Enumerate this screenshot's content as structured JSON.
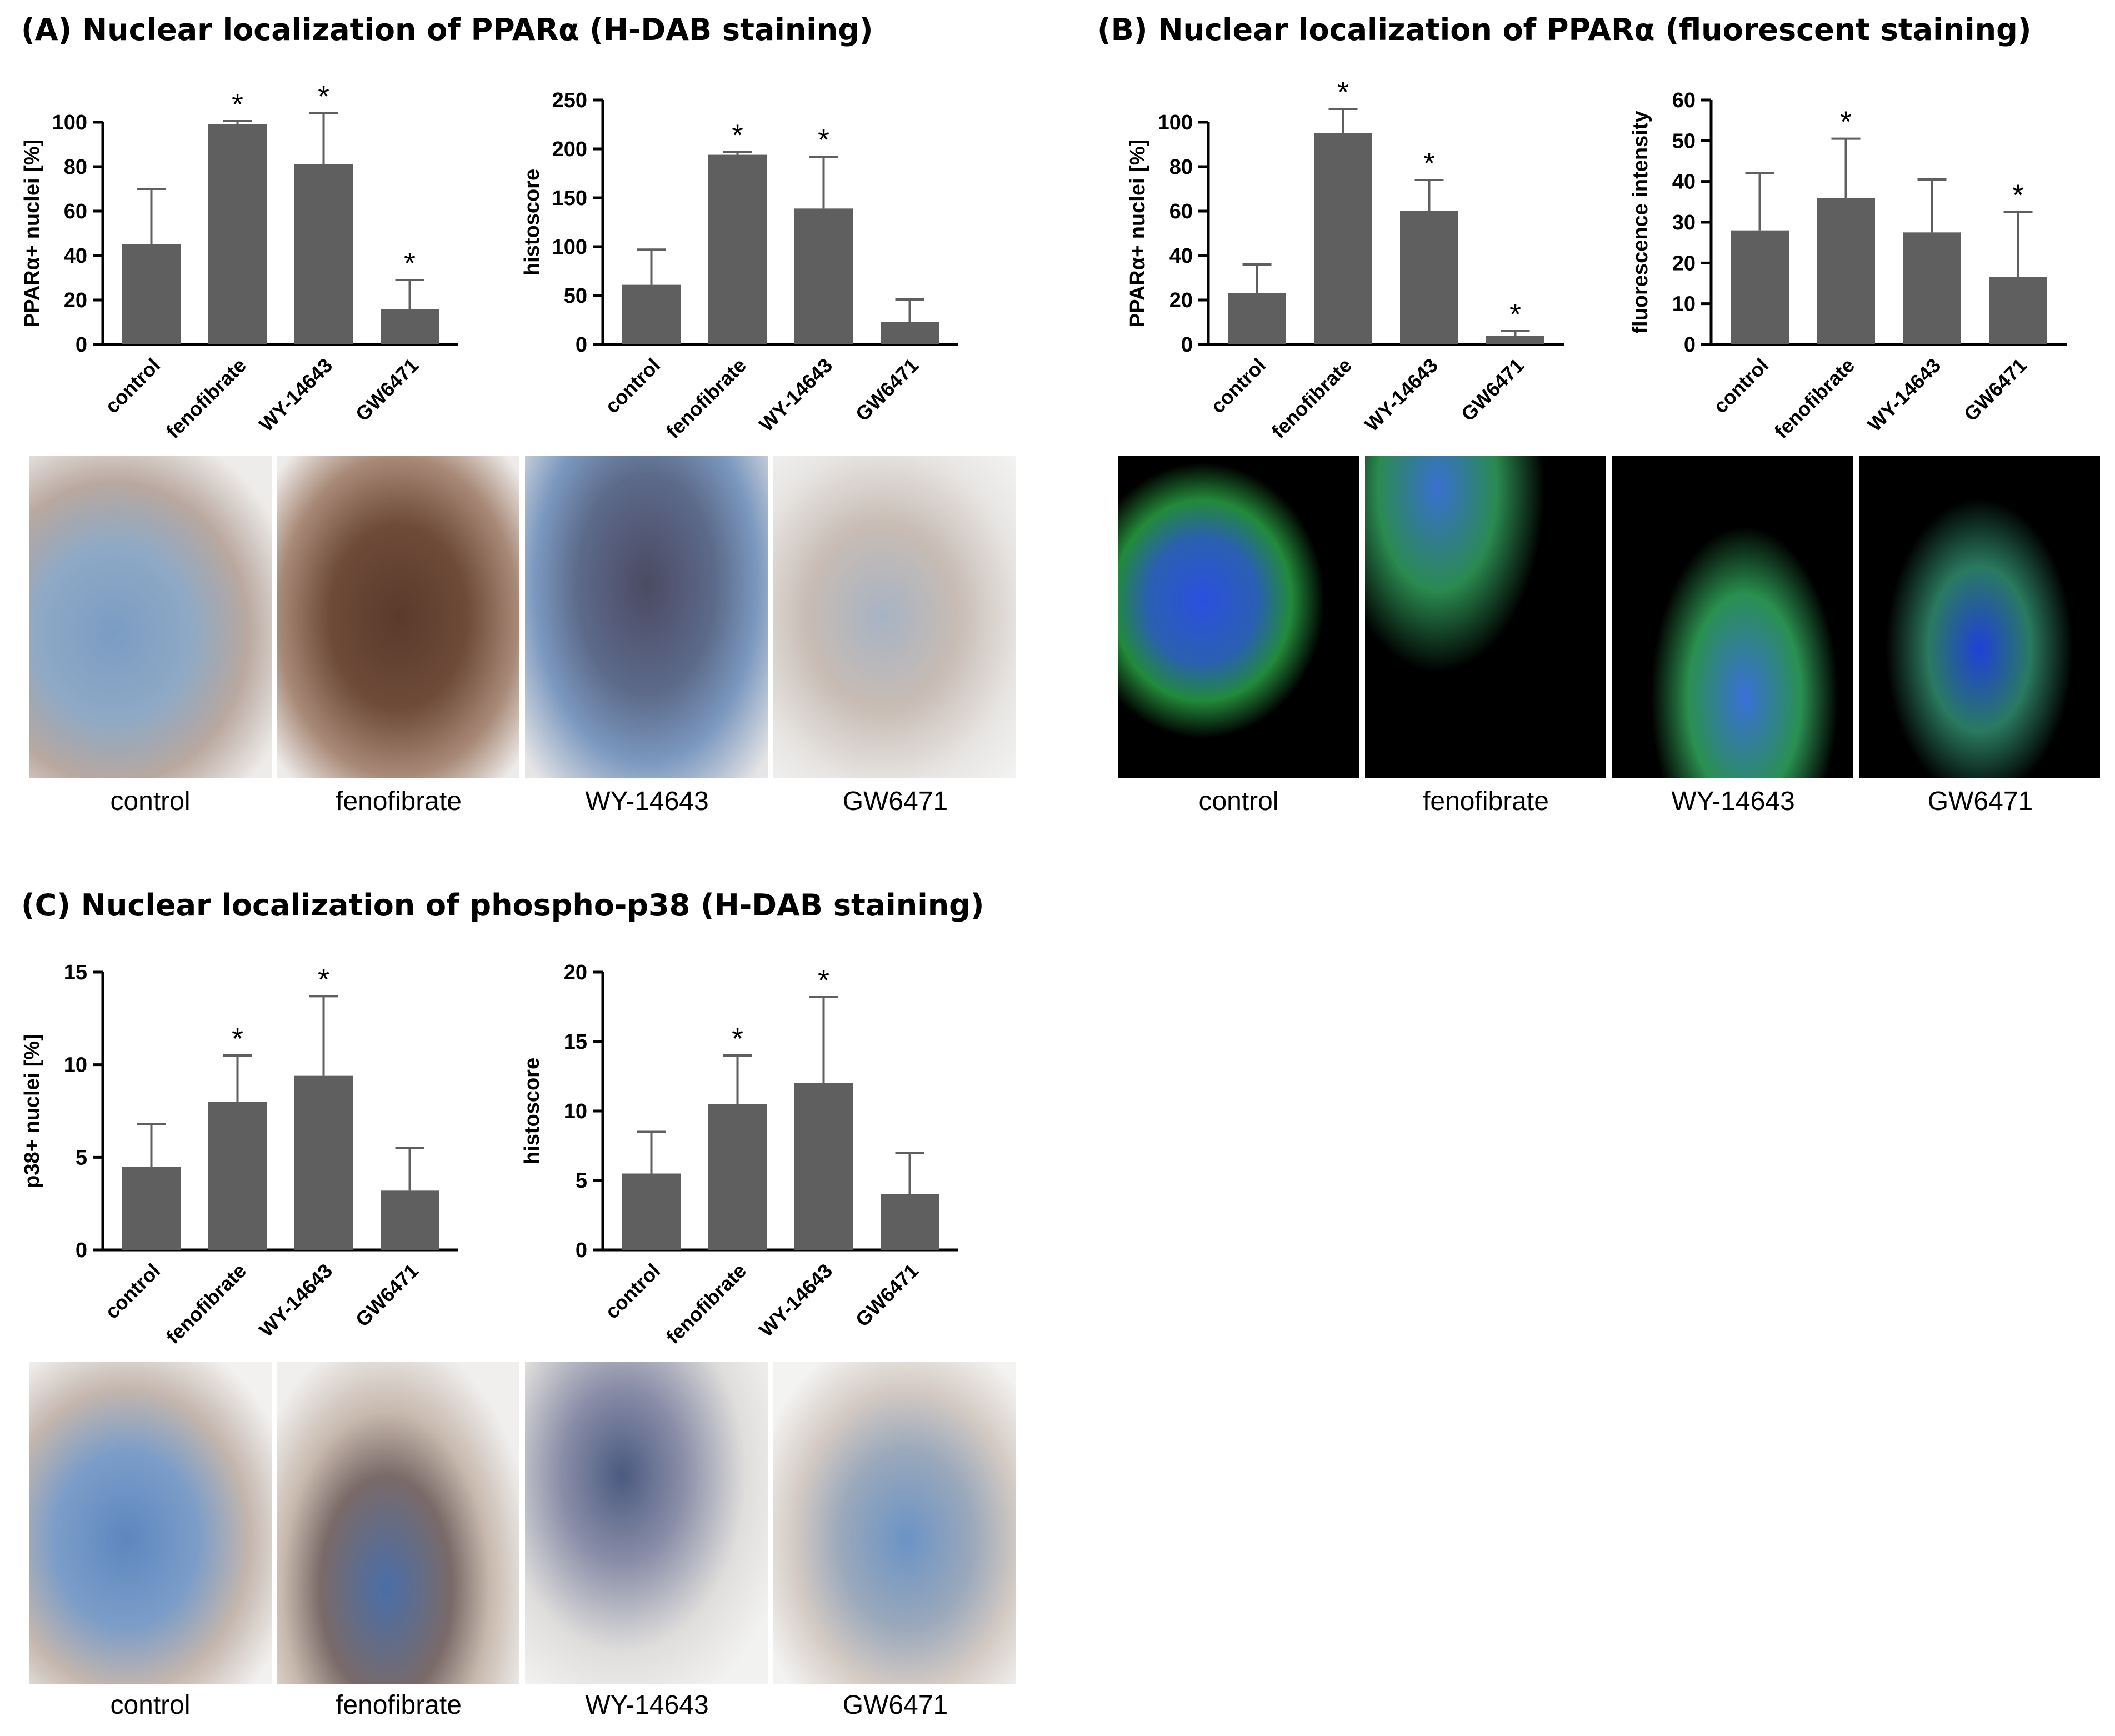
{
  "panels": {
    "A": {
      "title": "(A) Nuclear localization of PPARα (H-DAB staining)",
      "image_labels": [
        "control",
        "fenofibrate",
        "WY-14643",
        "GW6471"
      ]
    },
    "B": {
      "title": "(B) Nuclear localization of PPARα (fluorescent staining)",
      "image_labels": [
        "control",
        "fenofibrate",
        "WY-14643",
        "GW6471"
      ]
    },
    "C": {
      "title": "(C) Nuclear localization of phospho-p38 (H-DAB staining)",
      "image_labels": [
        "control",
        "fenofibrate",
        "WY-14643",
        "GW6471"
      ]
    }
  },
  "colors": {
    "bar": "#5f5f5f",
    "axis": "#000000",
    "dab_background": "#eeecea",
    "dab_brown": "#6e4a38",
    "hematoxylin_blue": "#6f93bd",
    "fluor_background": "#000000",
    "fluor_green": "#32b840",
    "fluor_blue": "#2040d8"
  },
  "chart_data": [
    {
      "type": "bar",
      "panel": "A",
      "categories": [
        "control",
        "fenofibrate",
        "WY-14643",
        "GW6471"
      ],
      "values": [
        45,
        99,
        81,
        16
      ],
      "errors": [
        25,
        1.5,
        23,
        13
      ],
      "significant": [
        false,
        true,
        true,
        true
      ],
      "ylabel": "PPARα+ nuclei [%]",
      "ylim": [
        0,
        110
      ],
      "yticks": [
        0,
        20,
        40,
        60,
        80,
        100
      ]
    },
    {
      "type": "bar",
      "panel": "A",
      "categories": [
        "control",
        "fenofibrate",
        "WY-14643",
        "GW6471"
      ],
      "values": [
        61,
        194,
        139,
        23
      ],
      "errors": [
        36,
        3,
        53,
        23
      ],
      "significant": [
        false,
        true,
        true,
        false
      ],
      "ylabel": "histoscore",
      "ylim": [
        0,
        250
      ],
      "yticks": [
        0,
        50,
        100,
        150,
        200,
        250
      ]
    },
    {
      "type": "bar",
      "panel": "B",
      "categories": [
        "control",
        "fenofibrate",
        "WY-14643",
        "GW6471"
      ],
      "values": [
        23,
        95,
        60,
        4
      ],
      "errors": [
        13,
        11,
        14,
        2
      ],
      "significant": [
        false,
        true,
        true,
        true
      ],
      "ylabel": "PPARα+ nuclei [%]",
      "ylim": [
        0,
        110
      ],
      "yticks": [
        0,
        20,
        40,
        60,
        80,
        100
      ]
    },
    {
      "type": "bar",
      "panel": "B",
      "categories": [
        "control",
        "fenofibrate",
        "WY-14643",
        "GW6471"
      ],
      "values": [
        28,
        36,
        27.5,
        16.5
      ],
      "errors": [
        14,
        14.5,
        13,
        16
      ],
      "significant": [
        false,
        true,
        false,
        true
      ],
      "ylabel": "fluorescence intensity",
      "ylim": [
        0,
        60
      ],
      "yticks": [
        0,
        10,
        20,
        30,
        40,
        50,
        60
      ]
    },
    {
      "type": "bar",
      "panel": "C",
      "categories": [
        "control",
        "fenofibrate",
        "WY-14643",
        "GW6471"
      ],
      "values": [
        4.5,
        8,
        9.4,
        3.2
      ],
      "errors": [
        2.3,
        2.5,
        4.3,
        2.3
      ],
      "significant": [
        false,
        true,
        true,
        false
      ],
      "ylabel": "p38+ nuclei [%]",
      "ylim": [
        0,
        15
      ],
      "yticks": [
        0,
        5,
        10,
        15
      ]
    },
    {
      "type": "bar",
      "panel": "C",
      "categories": [
        "control",
        "fenofibrate",
        "WY-14643",
        "GW6471"
      ],
      "values": [
        5.5,
        10.5,
        12,
        4
      ],
      "errors": [
        3,
        3.5,
        6.2,
        3
      ],
      "significant": [
        false,
        true,
        true,
        false
      ],
      "ylabel": "histoscore",
      "ylim": [
        0,
        20
      ],
      "yticks": [
        0,
        5,
        10,
        15,
        20
      ]
    }
  ]
}
